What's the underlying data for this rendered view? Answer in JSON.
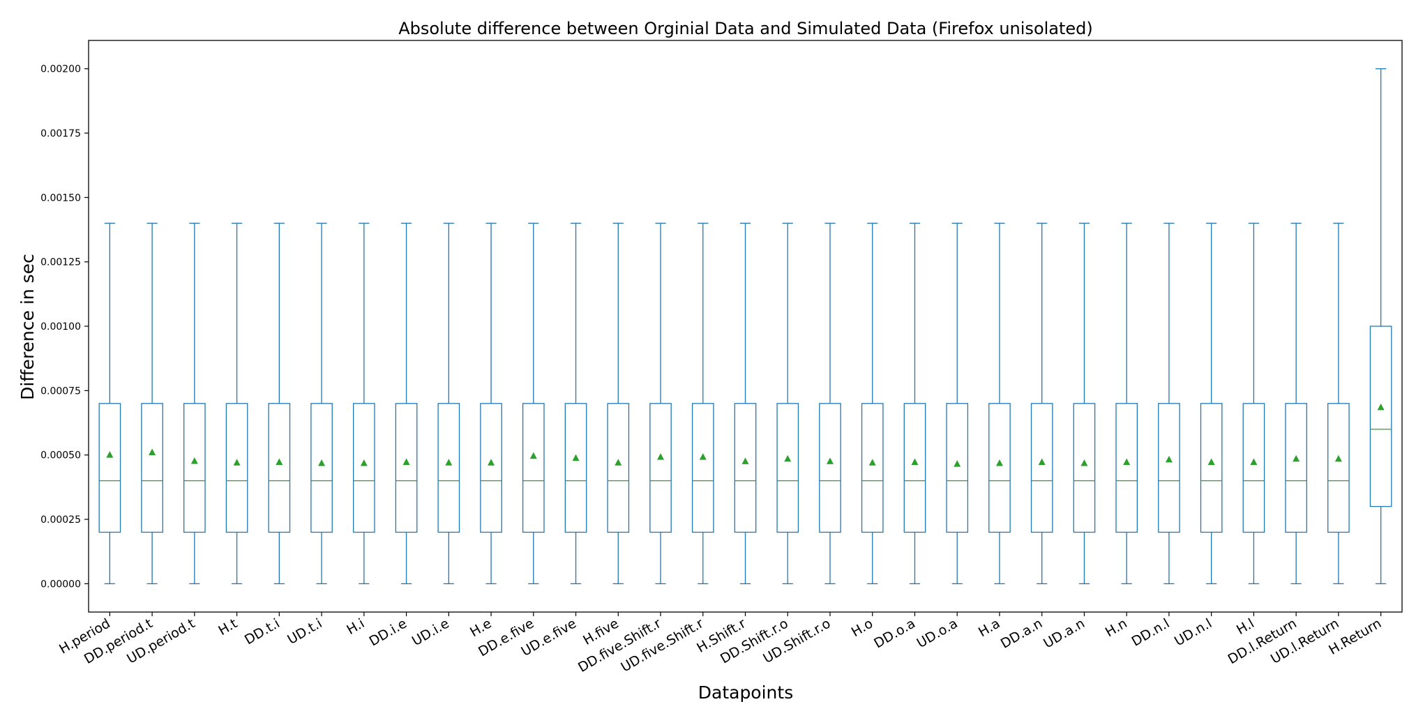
{
  "chart_data": {
    "type": "box",
    "title": "Absolute difference between Orginial Data and Simulated Data (Firefox unisolated)",
    "xlabel": "Datapoints",
    "ylabel": "Difference in sec",
    "ylim": [
      -0.00011,
      0.00211
    ],
    "yticks": [
      "0.00000",
      "0.00025",
      "0.00050",
      "0.00075",
      "0.00100",
      "0.00125",
      "0.00150",
      "0.00175",
      "0.00200"
    ],
    "grid": false,
    "colors": {
      "box": "#1f77b4",
      "median": "#2ca02c",
      "mean": "#2ca02c"
    },
    "categories": [
      "H.period",
      "DD.period.t",
      "UD.period.t",
      "H.t",
      "DD.t.i",
      "UD.t.i",
      "H.i",
      "DD.i.e",
      "UD.i.e",
      "H.e",
      "DD.e.five",
      "UD.e.five",
      "H.five",
      "DD.five.Shift.r",
      "UD.five.Shift.r",
      "H.Shift.r",
      "DD.Shift.r.o",
      "UD.Shift.r.o",
      "H.o",
      "DD.o.a",
      "UD.o.a",
      "H.a",
      "DD.a.n",
      "UD.a.n",
      "H.n",
      "DD.n.l",
      "UD.n.l",
      "H.l",
      "DD.l.Return",
      "UD.l.Return",
      "H.Return"
    ],
    "boxes": [
      {
        "whislo": 0.0,
        "q1": 0.0002,
        "med": 0.0004,
        "q3": 0.0007,
        "whishi": 0.0014,
        "mean": 0.0005
      },
      {
        "whislo": 0.0,
        "q1": 0.0002,
        "med": 0.0004,
        "q3": 0.0007,
        "whishi": 0.0014,
        "mean": 0.00051
      },
      {
        "whislo": 0.0,
        "q1": 0.0002,
        "med": 0.0004,
        "q3": 0.0007,
        "whishi": 0.0014,
        "mean": 0.000476
      },
      {
        "whislo": 0.0,
        "q1": 0.0002,
        "med": 0.0004,
        "q3": 0.0007,
        "whishi": 0.0014,
        "mean": 0.00047
      },
      {
        "whislo": 0.0,
        "q1": 0.0002,
        "med": 0.0004,
        "q3": 0.0007,
        "whishi": 0.0014,
        "mean": 0.000472
      },
      {
        "whislo": 0.0,
        "q1": 0.0002,
        "med": 0.0004,
        "q3": 0.0007,
        "whishi": 0.0014,
        "mean": 0.000468
      },
      {
        "whislo": 0.0,
        "q1": 0.0002,
        "med": 0.0004,
        "q3": 0.0007,
        "whishi": 0.0014,
        "mean": 0.000468
      },
      {
        "whislo": 0.0,
        "q1": 0.0002,
        "med": 0.0004,
        "q3": 0.0007,
        "whishi": 0.0014,
        "mean": 0.000472
      },
      {
        "whislo": 0.0,
        "q1": 0.0002,
        "med": 0.0004,
        "q3": 0.0007,
        "whishi": 0.0014,
        "mean": 0.00047
      },
      {
        "whislo": 0.0,
        "q1": 0.0002,
        "med": 0.0004,
        "q3": 0.0007,
        "whishi": 0.0014,
        "mean": 0.00047
      },
      {
        "whislo": 0.0,
        "q1": 0.0002,
        "med": 0.0004,
        "q3": 0.0007,
        "whishi": 0.0014,
        "mean": 0.000496
      },
      {
        "whislo": 0.0,
        "q1": 0.0002,
        "med": 0.0004,
        "q3": 0.0007,
        "whishi": 0.0014,
        "mean": 0.000488
      },
      {
        "whislo": 0.0,
        "q1": 0.0002,
        "med": 0.0004,
        "q3": 0.0007,
        "whishi": 0.0014,
        "mean": 0.00047
      },
      {
        "whislo": 0.0,
        "q1": 0.0002,
        "med": 0.0004,
        "q3": 0.0007,
        "whishi": 0.0014,
        "mean": 0.000492
      },
      {
        "whislo": 0.0,
        "q1": 0.0002,
        "med": 0.0004,
        "q3": 0.0007,
        "whishi": 0.0014,
        "mean": 0.000492
      },
      {
        "whislo": 0.0,
        "q1": 0.0002,
        "med": 0.0004,
        "q3": 0.0007,
        "whishi": 0.0014,
        "mean": 0.000475
      },
      {
        "whislo": 0.0,
        "q1": 0.0002,
        "med": 0.0004,
        "q3": 0.0007,
        "whishi": 0.0014,
        "mean": 0.000485
      },
      {
        "whislo": 0.0,
        "q1": 0.0002,
        "med": 0.0004,
        "q3": 0.0007,
        "whishi": 0.0014,
        "mean": 0.000475
      },
      {
        "whislo": 0.0,
        "q1": 0.0002,
        "med": 0.0004,
        "q3": 0.0007,
        "whishi": 0.0014,
        "mean": 0.00047
      },
      {
        "whislo": 0.0,
        "q1": 0.0002,
        "med": 0.0004,
        "q3": 0.0007,
        "whishi": 0.0014,
        "mean": 0.000472
      },
      {
        "whislo": 0.0,
        "q1": 0.0002,
        "med": 0.0004,
        "q3": 0.0007,
        "whishi": 0.0014,
        "mean": 0.000465
      },
      {
        "whislo": 0.0,
        "q1": 0.0002,
        "med": 0.0004,
        "q3": 0.0007,
        "whishi": 0.0014,
        "mean": 0.000468
      },
      {
        "whislo": 0.0,
        "q1": 0.0002,
        "med": 0.0004,
        "q3": 0.0007,
        "whishi": 0.0014,
        "mean": 0.000472
      },
      {
        "whislo": 0.0,
        "q1": 0.0002,
        "med": 0.0004,
        "q3": 0.0007,
        "whishi": 0.0014,
        "mean": 0.000468
      },
      {
        "whislo": 0.0,
        "q1": 0.0002,
        "med": 0.0004,
        "q3": 0.0007,
        "whishi": 0.0014,
        "mean": 0.000472
      },
      {
        "whislo": 0.0,
        "q1": 0.0002,
        "med": 0.0004,
        "q3": 0.0007,
        "whishi": 0.0014,
        "mean": 0.000482
      },
      {
        "whislo": 0.0,
        "q1": 0.0002,
        "med": 0.0004,
        "q3": 0.0007,
        "whishi": 0.0014,
        "mean": 0.000472
      },
      {
        "whislo": 0.0,
        "q1": 0.0002,
        "med": 0.0004,
        "q3": 0.0007,
        "whishi": 0.0014,
        "mean": 0.000472
      },
      {
        "whislo": 0.0,
        "q1": 0.0002,
        "med": 0.0004,
        "q3": 0.0007,
        "whishi": 0.0014,
        "mean": 0.000485
      },
      {
        "whislo": 0.0,
        "q1": 0.0002,
        "med": 0.0004,
        "q3": 0.0007,
        "whishi": 0.0014,
        "mean": 0.000485
      },
      {
        "whislo": 0.0,
        "q1": 0.0003,
        "med": 0.0006,
        "q3": 0.001,
        "whishi": 0.002,
        "mean": 0.000685
      }
    ]
  }
}
